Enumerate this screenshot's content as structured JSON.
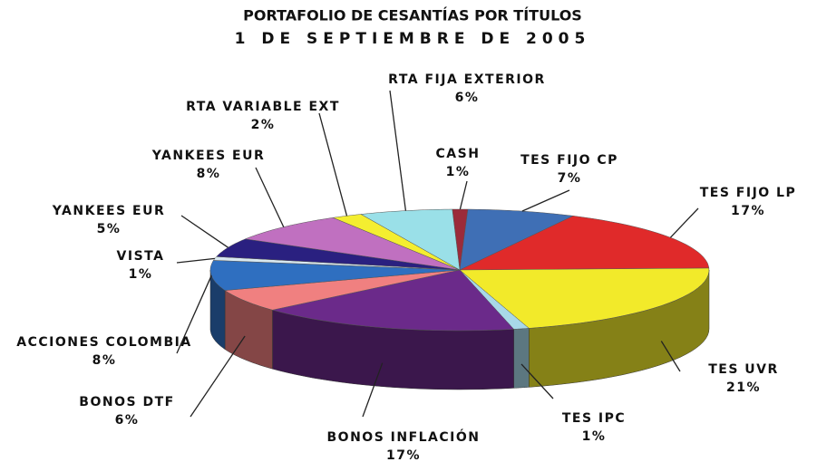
{
  "chart_data": {
    "type": "pie",
    "title": "PORTAFOLIO DE CESANTÍAS POR TÍTULOS",
    "subtitle": "1 DE SEPTIEMBRE DE 2005",
    "categories": [
      "CASH",
      "TES FIJO CP",
      "TES FIJO LP",
      "TES UVR",
      "TES IPC",
      "BONOS INFLACIÓN",
      "BONOS DTF",
      "ACCIONES COLOMBIA",
      "VISTA",
      "YANKEES EUR",
      "YANKEES EUR",
      "RTA VARIABLE EXT",
      "RTA FIJA EXTERIOR"
    ],
    "values": [
      1,
      7,
      17,
      21,
      1,
      17,
      6,
      8,
      1,
      5,
      8,
      2,
      6
    ],
    "value_labels": [
      "1%",
      "7%",
      "17%",
      "21%",
      "1%",
      "17%",
      "6%",
      "8%",
      "1%",
      "5%",
      "8%",
      "2%",
      "6%"
    ],
    "colors": [
      "#9b2b3a",
      "#3f6fb5",
      "#e02a2a",
      "#f2ea2a",
      "#a8d8e8",
      "#6b2a8a",
      "#f08080",
      "#2f6fc0",
      "#d8e8f0",
      "#2a2080",
      "#c070c0",
      "#f4ee30",
      "#9ae0e8"
    ]
  }
}
